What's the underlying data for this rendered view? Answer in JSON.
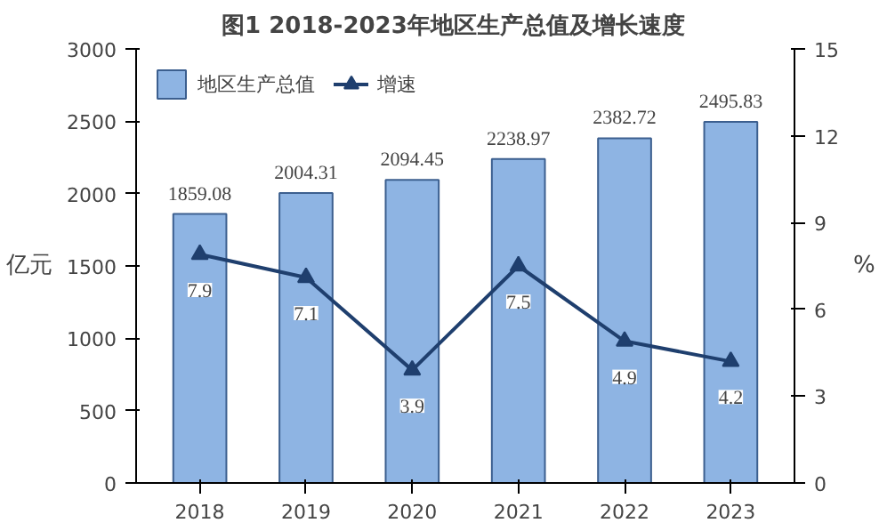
{
  "chart_data": {
    "type": "bar",
    "title": "图1    2018-2023年地区生产总值及增长速度",
    "ylabel": "亿元",
    "y2label": "%",
    "categories": [
      "2018",
      "2019",
      "2020",
      "2021",
      "2022",
      "2023"
    ],
    "series": [
      {
        "name": "地区生产总值",
        "color": "#8eb4e3",
        "values": [
          1859.08,
          2004.31,
          2094.45,
          2238.97,
          2382.72,
          2495.83
        ]
      },
      {
        "name": "增速",
        "type": "line",
        "axis": "y2",
        "color": "#1f3f6e",
        "marker": "triangle",
        "values": [
          7.9,
          7.1,
          3.9,
          7.5,
          4.9,
          4.2
        ]
      }
    ],
    "ylim": [
      0,
      3000
    ],
    "yticks": [
      0,
      500,
      1000,
      1500,
      2000,
      2500,
      3000
    ],
    "y2lim": [
      0,
      15
    ],
    "y2ticks": [
      0,
      3,
      6,
      9,
      12,
      15
    ],
    "data_labels": true,
    "legend": "top left",
    "grid": false
  }
}
